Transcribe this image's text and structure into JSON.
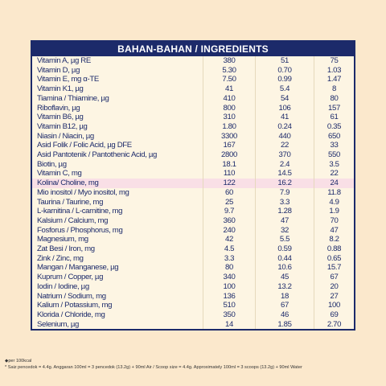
{
  "header": {
    "title": "BAHAN-BAHAN / INGREDIENTS"
  },
  "table": {
    "rows": [
      [
        "Vitamin A, µg RE",
        "380",
        "51",
        "75"
      ],
      [
        "Vitamin D, µg",
        "5.30",
        "0.70",
        "1.03"
      ],
      [
        "Vitamin E, mg α-TE",
        "7.50",
        "0.99",
        "1.47"
      ],
      [
        "Vitamin K1, µg",
        "41",
        "5.4",
        "8"
      ],
      [
        "Tiamina / Thiamine, µg",
        "410",
        "54",
        "80"
      ],
      [
        "Riboflavin, µg",
        "800",
        "106",
        "157"
      ],
      [
        "Vitamin B6, µg",
        "310",
        "41",
        "61"
      ],
      [
        "Vitamin B12, µg",
        "1.80",
        "0.24",
        "0.35"
      ],
      [
        "Niasin / Niacin, µg",
        "3300",
        "440",
        "650"
      ],
      [
        "Asid Folik / Folic Acid, µg DFE",
        "167",
        "22",
        "33"
      ],
      [
        "Asid Pantotenik / Pantothenic Acid, µg",
        "2800",
        "370",
        "550"
      ],
      [
        "Biotin, µg",
        "18.1",
        "2.4",
        "3.5"
      ],
      [
        "Vitamin C, mg",
        "110",
        "14.5",
        "22"
      ],
      [
        "Kolina/ Choline, mg",
        "122",
        "16.2",
        "24"
      ],
      [
        "Mio inositol / Myo inositol, mg",
        "60",
        "7.9",
        "11.8"
      ],
      [
        "Taurina / Taurine, mg",
        "25",
        "3.3",
        "4.9"
      ],
      [
        "L-karnitina / L-carnitine, mg",
        "9.7",
        "1.28",
        "1.9"
      ],
      [
        "Kalsium / Calcium, mg",
        "360",
        "47",
        "70"
      ],
      [
        "Fosforus / Phosphorus, mg",
        "240",
        "32",
        "47"
      ],
      [
        "Magnesium, mg",
        "42",
        "5.5",
        "8.2"
      ],
      [
        "Zat Besi / Iron, mg",
        "4.5",
        "0.59",
        "0.88"
      ],
      [
        "Zink / Zinc, mg",
        "3.3",
        "0.44",
        "0.65"
      ],
      [
        "Mangan / Manganese, µg",
        "80",
        "10.6",
        "15.7"
      ],
      [
        "Kuprum / Copper, µg",
        "340",
        "45",
        "67"
      ],
      [
        "Iodin / Iodine, µg",
        "100",
        "13.2",
        "20"
      ],
      [
        "Natrium / Sodium, mg",
        "136",
        "18",
        "27"
      ],
      [
        "Kalium / Potassium, mg",
        "510",
        "67",
        "100"
      ],
      [
        "Klorida / Chloride, mg",
        "350",
        "46",
        "69"
      ],
      [
        "Selenium, µg",
        "14",
        "1.85",
        "2.70"
      ]
    ]
  },
  "footnotes": [
    "per 100kcal",
    "* Saiz pencedok = 4.4g. Anggaran 100ml = 3 pencedok (13.2g) + 90ml Air / Scoop size = 4.4g. Approximately 100ml = 3 scoops (13.2g) + 90ml Water"
  ]
}
